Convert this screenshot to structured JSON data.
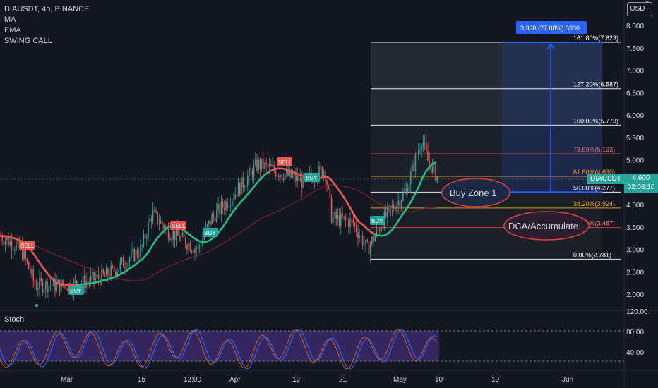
{
  "legend": {
    "symbol": "DIAUSDT, 4h, BINANCE",
    "ma": "MA",
    "ema": "EMA",
    "swing": "SWING CALL"
  },
  "currency_badge": "USDT",
  "price_tag": {
    "symbol": "DIAUSDT",
    "price": "4.600",
    "countdown": "02:08:10"
  },
  "stoch_label": "Stoch",
  "price_axis": {
    "top_partial": "8",
    "ticks": [
      "8.000",
      "7.500",
      "7.000",
      "6.500",
      "6.000",
      "5.500",
      "5.000",
      "4.500",
      "4.000",
      "3.500",
      "3.000",
      "2.500",
      "2.000"
    ]
  },
  "stoch_axis": {
    "ticks": [
      "120.00",
      "80.00",
      "40.00"
    ]
  },
  "time_axis": {
    "labels": [
      "Mar",
      "15",
      "12:00",
      "Apr",
      "12",
      "21",
      "May",
      "10",
      "19",
      "Jun"
    ]
  },
  "fib_levels": [
    {
      "label": "161.80%(7.623)",
      "color": "#ffffff"
    },
    {
      "label": "127.20%(6.587)",
      "color": "#ffffff"
    },
    {
      "label": "100.00%(5.773)",
      "color": "#ffffff"
    },
    {
      "label": "78.60%(5.133)",
      "color": "#e04040"
    },
    {
      "label": "61.80%(4.630)",
      "color": "#f0a030"
    },
    {
      "label": "50.00%(4.277)",
      "color": "#ffffff"
    },
    {
      "label": "38.20%(3.924)",
      "color": "#f0a030"
    },
    {
      "label": "23.60%(3.487)",
      "color": "#e04040"
    },
    {
      "label": "0.00%(2.781)",
      "color": "#ffffff"
    }
  ],
  "measure_label": "3.330 (77.88%) 3330",
  "annotations": {
    "buy_zone": "Buy Zone 1",
    "dca": "DCA/Accumulate"
  },
  "signals": [
    {
      "text": "SELL",
      "type": "sell"
    },
    {
      "text": "BUY",
      "type": "buy"
    },
    {
      "text": "SELL",
      "type": "sell"
    },
    {
      "text": "BUY",
      "type": "buy"
    },
    {
      "text": "SELL",
      "type": "sell"
    },
    {
      "text": "BUY",
      "type": "buy"
    },
    {
      "text": "BUY",
      "type": "buy"
    }
  ],
  "colors": {
    "background": "#131722",
    "text": "#d1d4dc",
    "ma_red": "#ef5350",
    "ema_green": "#26c281",
    "stoch_band": "#3b2a6b",
    "up": "#26a69a",
    "down": "#ef5350",
    "measure": "#2962ff"
  }
}
